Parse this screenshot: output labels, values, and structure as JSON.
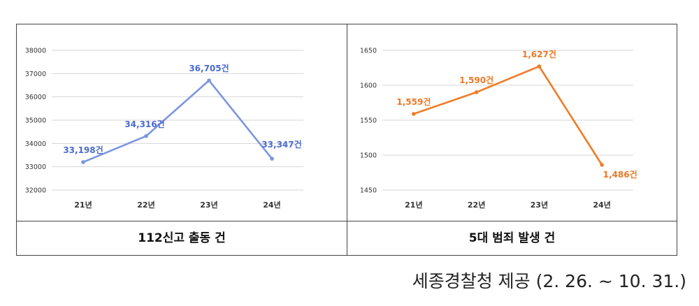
{
  "chart_data": [
    {
      "type": "line",
      "categories": [
        "21년",
        "22년",
        "23년",
        "24년"
      ],
      "values": [
        33198,
        34316,
        36705,
        33347
      ],
      "data_labels": [
        "33,198건",
        "34,316건",
        "36,705건",
        "33,347건"
      ],
      "yticks": [
        "32000",
        "33000",
        "34000",
        "35000",
        "36000",
        "37000",
        "38000"
      ],
      "ylim": [
        32000,
        38000
      ],
      "grid": true,
      "color": "#7b95e0",
      "label_color": "#4a6bd0",
      "caption": "112신고 출동 건"
    },
    {
      "type": "line",
      "categories": [
        "21년",
        "22년",
        "23년",
        "24년"
      ],
      "values": [
        1559,
        1590,
        1627,
        1486
      ],
      "data_labels": [
        "1,559건",
        "1,590건",
        "1,627건",
        "1,486건"
      ],
      "yticks": [
        "1450",
        "1500",
        "1550",
        "1600",
        "1650"
      ],
      "ylim": [
        1450,
        1650
      ],
      "grid": true,
      "color": "#f07c28",
      "label_color": "#ee7722",
      "caption": "5대 범죄 발생 건"
    }
  ],
  "source": "세종경찰청 제공 (2. 26. ~ 10. 31.)"
}
